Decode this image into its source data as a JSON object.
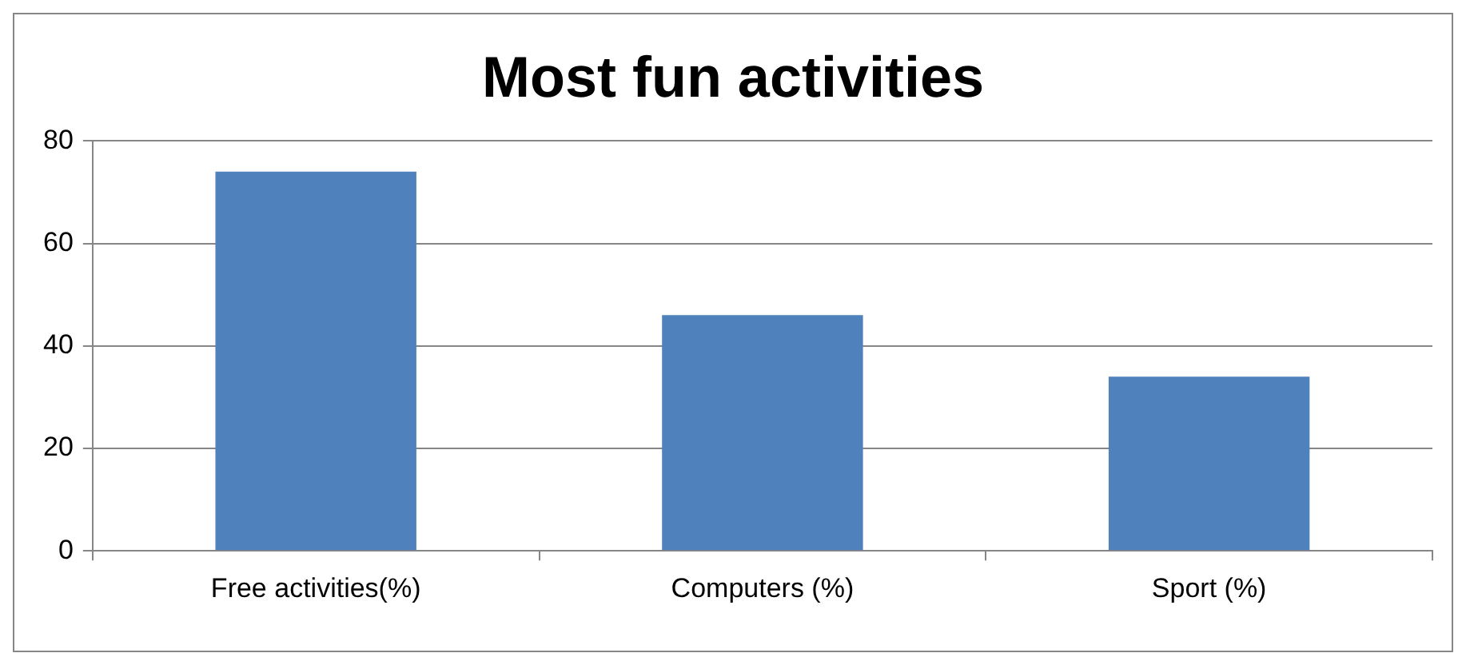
{
  "chart_data": {
    "type": "bar",
    "title": "Most fun activities",
    "categories": [
      "Free activities(%)",
      "Computers (%)",
      "Sport (%)"
    ],
    "values": [
      74,
      46,
      34
    ],
    "color": "#4f81bd",
    "ylim": [
      0,
      80
    ],
    "yticks": [
      0,
      20,
      40,
      60,
      80
    ],
    "grid": "y",
    "legend": false
  }
}
